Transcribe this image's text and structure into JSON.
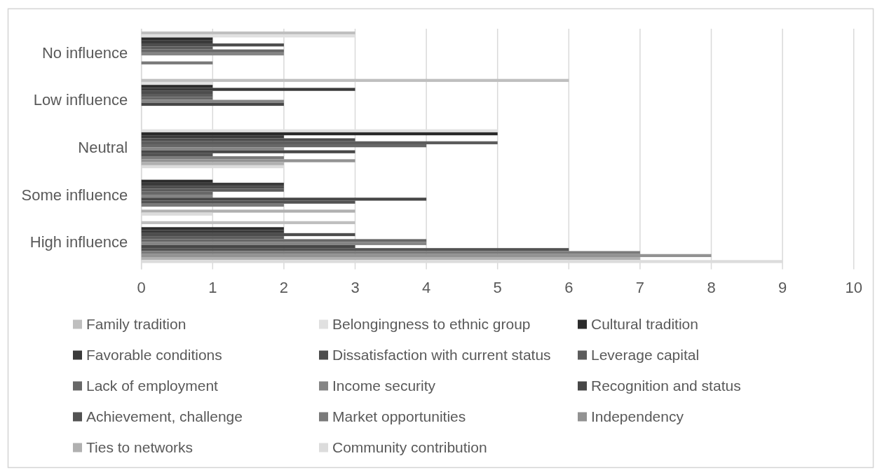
{
  "chart_data": {
    "type": "bar",
    "orientation": "horizontal",
    "categories": [
      "No influence",
      "Low influence",
      "Neutral",
      "Some influence",
      "High influence"
    ],
    "series": [
      {
        "name": "Family tradition",
        "color": "#bfbfbf",
        "values": [
          3,
          6,
          0,
          0,
          3
        ]
      },
      {
        "name": "Belongingness to ethnic group",
        "color": "#e0e0e0",
        "values": [
          3,
          1,
          5,
          0,
          0
        ]
      },
      {
        "name": "Cultural tradition",
        "color": "#2b2b2b",
        "values": [
          1,
          1,
          5,
          1,
          2
        ]
      },
      {
        "name": "Favorable conditions",
        "color": "#3a3a3a",
        "values": [
          1,
          3,
          2,
          2,
          2
        ]
      },
      {
        "name": "Dissatisfaction with current status",
        "color": "#4d4d4d",
        "values": [
          2,
          1,
          3,
          2,
          3
        ]
      },
      {
        "name": "Leverage capital",
        "color": "#5c5c5c",
        "values": [
          1,
          1,
          5,
          2,
          2
        ]
      },
      {
        "name": "Lack of employment",
        "color": "#676767",
        "values": [
          2,
          1,
          4,
          1,
          4
        ]
      },
      {
        "name": "Income security",
        "color": "#858585",
        "values": [
          2,
          2,
          2,
          1,
          4
        ]
      },
      {
        "name": "Recognition and status",
        "color": "#474747",
        "values": [
          0,
          2,
          3,
          4,
          3
        ]
      },
      {
        "name": "Achievement, challenge",
        "color": "#525252",
        "values": [
          0,
          0,
          1,
          3,
          6
        ]
      },
      {
        "name": "Market opportunities",
        "color": "#7a7a7a",
        "values": [
          1,
          0,
          2,
          2,
          7
        ]
      },
      {
        "name": "Independency",
        "color": "#929292",
        "values": [
          0,
          0,
          3,
          0,
          8
        ]
      },
      {
        "name": "Ties to networks",
        "color": "#b0b0b0",
        "values": [
          0,
          0,
          2,
          3,
          7
        ]
      },
      {
        "name": "Community contribution",
        "color": "#dcdcdc",
        "values": [
          0,
          0,
          2,
          1,
          9
        ]
      }
    ],
    "xlim": [
      0,
      10
    ],
    "xticks": [
      0,
      1,
      2,
      3,
      4,
      5,
      6,
      7,
      8,
      9,
      10
    ],
    "grid": "x",
    "legend": "bottom"
  }
}
